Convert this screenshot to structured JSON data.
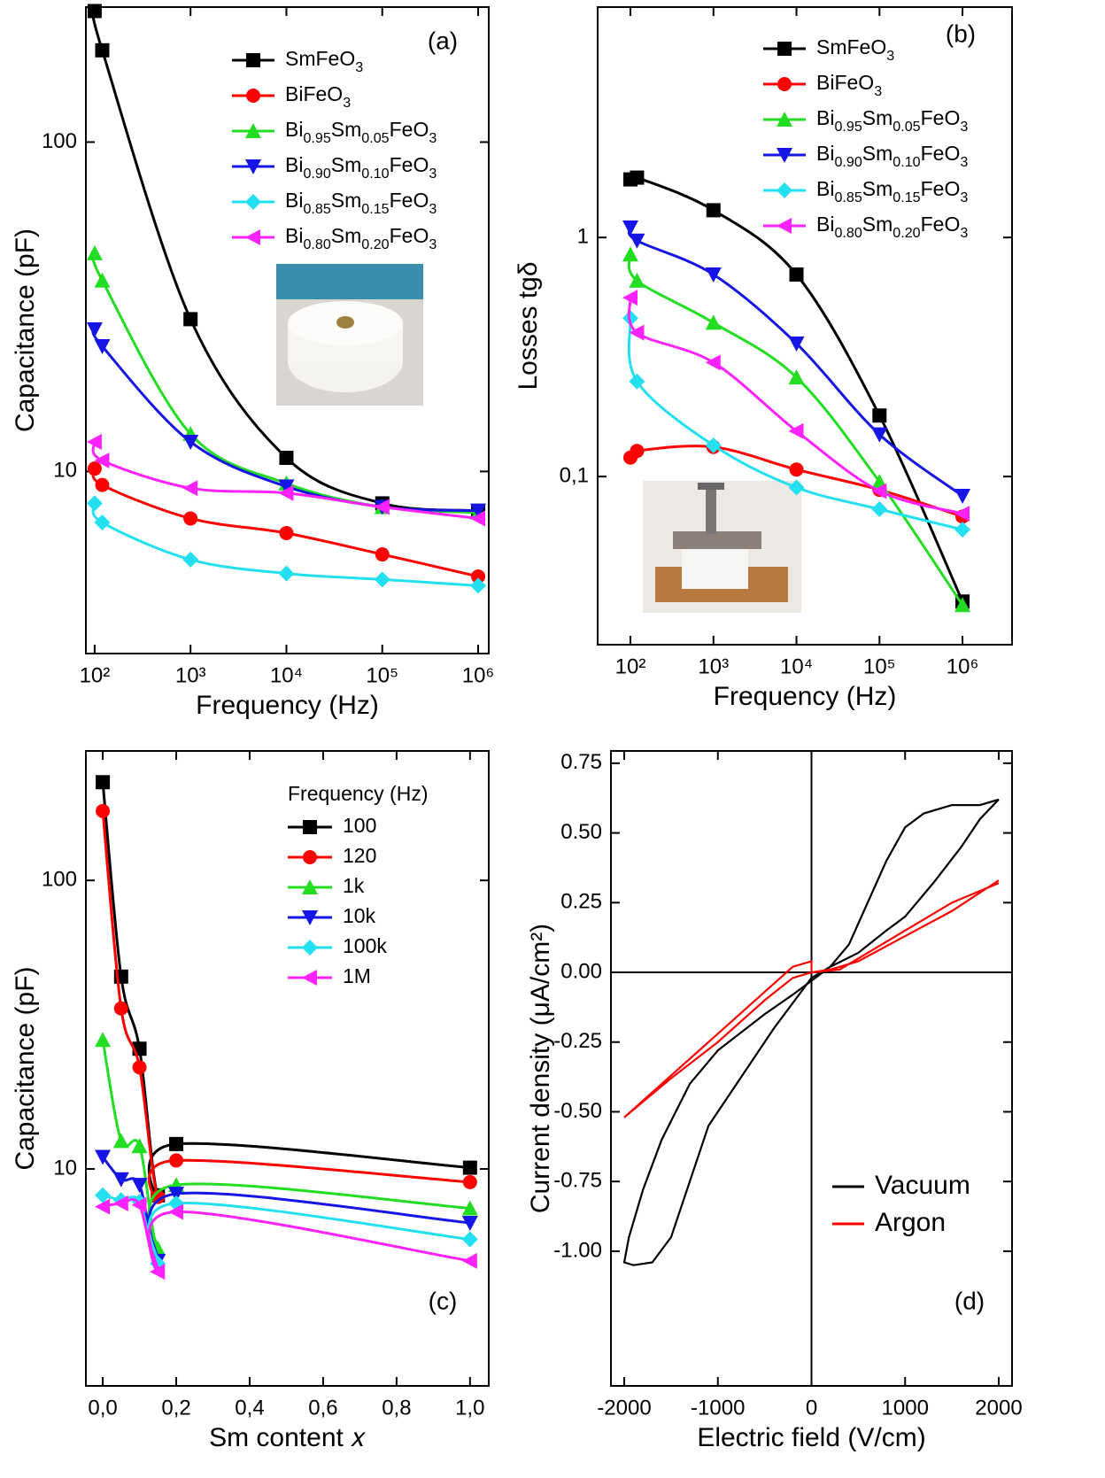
{
  "chart_data": [
    {
      "type": "line",
      "xscale": "log",
      "yscale": "log",
      "smooth": true,
      "x_label": "Frequency (Hz)",
      "y_label": "Capacitance (pF)",
      "annotation": "(a)",
      "x": [
        100,
        120,
        1000,
        10000,
        100000,
        1000000
      ],
      "xlim": [
        81,
        1290000
      ],
      "ylim": [
        2.8,
        257
      ],
      "xticks": [
        {
          "value": 100,
          "label": "10²"
        },
        {
          "value": 1000,
          "label": "10³"
        },
        {
          "value": 10000,
          "label": "10⁴"
        },
        {
          "value": 100000,
          "label": "10⁵"
        },
        {
          "value": 1000000,
          "label": "10⁶"
        }
      ],
      "yticks": [
        10,
        100
      ],
      "series": [
        {
          "name": "SmFeO3",
          "color": "#000000",
          "marker": "square",
          "values": [
            250,
            190,
            29,
            11,
            8,
            7.6
          ]
        },
        {
          "name": "BiFeO3",
          "color": "#ff0000",
          "marker": "circle",
          "values": [
            10.2,
            9.1,
            7.2,
            6.5,
            5.6,
            4.8
          ]
        },
        {
          "name": "Bi0.95Sm0.05FeO3",
          "color": "#22dd22",
          "marker": "triangle-up",
          "values": [
            46,
            38,
            13,
            9.2,
            7.8,
            7.5
          ]
        },
        {
          "name": "Bi0.90Sm0.10FeO3",
          "color": "#1515e6",
          "marker": "triangle-down",
          "values": [
            27,
            24,
            12.3,
            9,
            7.8,
            7.6
          ]
        },
        {
          "name": "Bi0.85Sm0.15FeO3",
          "color": "#22e0f0",
          "marker": "diamond",
          "values": [
            8,
            7,
            5.4,
            4.9,
            4.7,
            4.5
          ]
        },
        {
          "name": "Bi0.80Sm0.20FeO3",
          "color": "#ff22ff",
          "marker": "triangle-left",
          "values": [
            12.3,
            10.8,
            8.9,
            8.6,
            7.8,
            7.2
          ]
        }
      ]
    },
    {
      "type": "line",
      "xscale": "log",
      "yscale": "log",
      "smooth": true,
      "x_label": "Frequency (Hz)",
      "y_label": "Losses tgδ",
      "annotation": "(b)",
      "x": [
        100,
        120,
        1000,
        10000,
        100000,
        1000000
      ],
      "xlim": [
        40.3,
        3950000
      ],
      "ylim": [
        0.0198,
        9.2
      ],
      "xticks": [
        {
          "value": 100,
          "label": "10²"
        },
        {
          "value": 1000,
          "label": "10³"
        },
        {
          "value": 10000,
          "label": "10⁴"
        },
        {
          "value": 100000,
          "label": "10⁵"
        },
        {
          "value": 1000000,
          "label": "10⁶"
        }
      ],
      "yticks": [
        {
          "value": 0.1,
          "label": "0,1"
        },
        1
      ],
      "series": [
        {
          "name": "SmFeO3",
          "color": "#000000",
          "marker": "square",
          "values": [
            1.75,
            1.78,
            1.3,
            0.7,
            0.18,
            0.03
          ]
        },
        {
          "name": "BiFeO3",
          "color": "#ff0000",
          "marker": "circle",
          "values": [
            0.12,
            0.128,
            0.133,
            0.107,
            0.088,
            0.068
          ]
        },
        {
          "name": "Bi0.95Sm0.05FeO3",
          "color": "#22dd22",
          "marker": "triangle-up",
          "values": [
            0.85,
            0.66,
            0.44,
            0.26,
            0.095,
            0.029
          ]
        },
        {
          "name": "Bi0.90Sm0.10FeO3",
          "color": "#1515e6",
          "marker": "triangle-down",
          "values": [
            1.1,
            0.97,
            0.7,
            0.36,
            0.15,
            0.083
          ]
        },
        {
          "name": "Bi0.85Sm0.15FeO3",
          "color": "#22e0f0",
          "marker": "diamond",
          "values": [
            0.46,
            0.25,
            0.135,
            0.09,
            0.073,
            0.06
          ]
        },
        {
          "name": "Bi0.80Sm0.20FeO3",
          "color": "#ff22ff",
          "marker": "triangle-left",
          "values": [
            0.56,
            0.4,
            0.3,
            0.155,
            0.087,
            0.07
          ]
        }
      ]
    },
    {
      "type": "line",
      "yscale": "log",
      "smooth": true,
      "x_label": "Sm content 𝑥",
      "y_label": "Capacitance (pF)",
      "annotation": "(c)",
      "legend_title": "Frequency (Hz)",
      "x": [
        0,
        0.05,
        0.1,
        0.15,
        0.2,
        1.0
      ],
      "xlim": [
        -0.046,
        1.051
      ],
      "ylim": [
        1.77,
        281
      ],
      "xticks": [
        {
          "value": 0,
          "label": "0,0"
        },
        {
          "value": 0.2,
          "label": "0,2"
        },
        {
          "value": 0.4,
          "label": "0,4"
        },
        {
          "value": 0.6,
          "label": "0,6"
        },
        {
          "value": 0.8,
          "label": "0,8"
        },
        {
          "value": 1.0,
          "label": "1,0"
        }
      ],
      "yticks": [
        10,
        100
      ],
      "series": [
        {
          "name": "100",
          "color": "#000000",
          "marker": "square",
          "values": [
            219,
            46.4,
            26.1,
            8.1,
            12.2,
            10.1
          ]
        },
        {
          "name": "120",
          "color": "#ff0000",
          "marker": "circle",
          "values": [
            174,
            36,
            22.5,
            8,
            10.7,
            9
          ]
        },
        {
          "name": "1k",
          "color": "#22dd22",
          "marker": "triangle-up",
          "values": [
            28,
            12.5,
            12,
            5.3,
            8.8,
            7.3
          ]
        },
        {
          "name": "10k",
          "color": "#1515e6",
          "marker": "triangle-down",
          "values": [
            11,
            9.2,
            8.8,
            4.8,
            8.2,
            6.5
          ]
        },
        {
          "name": "100k",
          "color": "#22e0f0",
          "marker": "diamond",
          "values": [
            8.1,
            7.8,
            7.7,
            4.7,
            7.6,
            5.7
          ]
        },
        {
          "name": "1M",
          "color": "#ff22ff",
          "marker": "triangle-left",
          "values": [
            7.4,
            7.6,
            7.5,
            4.4,
            7.1,
            4.8
          ]
        }
      ]
    },
    {
      "type": "line",
      "smooth": false,
      "x_label": "Electric field (V/cm)",
      "y_label": "Current density (μA/cm²)",
      "annotation": "(d)",
      "xlim": [
        -2142,
        2142
      ],
      "ylim": [
        -1.483,
        0.794
      ],
      "xticks": [
        -2000,
        -1000,
        0,
        1000,
        2000
      ],
      "yticks": [
        0.75,
        {
          "value": 0.5,
          "label": "0.50"
        },
        0.25,
        {
          "value": 0,
          "label": "0.00"
        },
        -0.25,
        {
          "value": -0.5,
          "label": "-0.50"
        },
        -0.75,
        {
          "value": -1,
          "label": "-1.00"
        }
      ],
      "series": [
        {
          "name": "Vacuum",
          "color": "#000000",
          "x": [
            2000,
            1800,
            1500,
            1200,
            1000,
            800,
            600,
            400,
            200,
            0,
            -200,
            -500,
            -1000,
            -1300,
            -1600,
            -1800,
            -1950,
            -2000,
            -1900,
            -1700,
            -1500,
            -1300,
            -1100,
            -800,
            -400,
            0,
            200,
            500,
            800,
            1000,
            1300,
            1600,
            1800,
            2000
          ],
          "values": [
            0.62,
            0.6,
            0.6,
            0.57,
            0.52,
            0.4,
            0.25,
            0.1,
            0.02,
            -0.03,
            -0.08,
            -0.15,
            -0.28,
            -0.4,
            -0.6,
            -0.78,
            -0.95,
            -1.04,
            -1.05,
            -1.04,
            -0.95,
            -0.75,
            -0.55,
            -0.4,
            -0.2,
            -0.02,
            0.02,
            0.07,
            0.15,
            0.2,
            0.32,
            0.45,
            0.55,
            0.62
          ]
        },
        {
          "name": "Argon",
          "color": "#ff0000",
          "x": [
            2000,
            1500,
            1000,
            500,
            200,
            0,
            -200,
            -500,
            -1000,
            -1500,
            -2000,
            -1500,
            -1000,
            -500,
            -200,
            0,
            0,
            300,
            500,
            1000,
            1500,
            2000
          ],
          "values": [
            0.33,
            0.22,
            0.13,
            0.04,
            0.01,
            0.0,
            -0.02,
            -0.1,
            -0.25,
            -0.38,
            -0.52,
            -0.37,
            -0.22,
            -0.07,
            0.02,
            0.04,
            0.0,
            0.01,
            0.05,
            0.15,
            0.25,
            0.32
          ]
        }
      ]
    }
  ]
}
